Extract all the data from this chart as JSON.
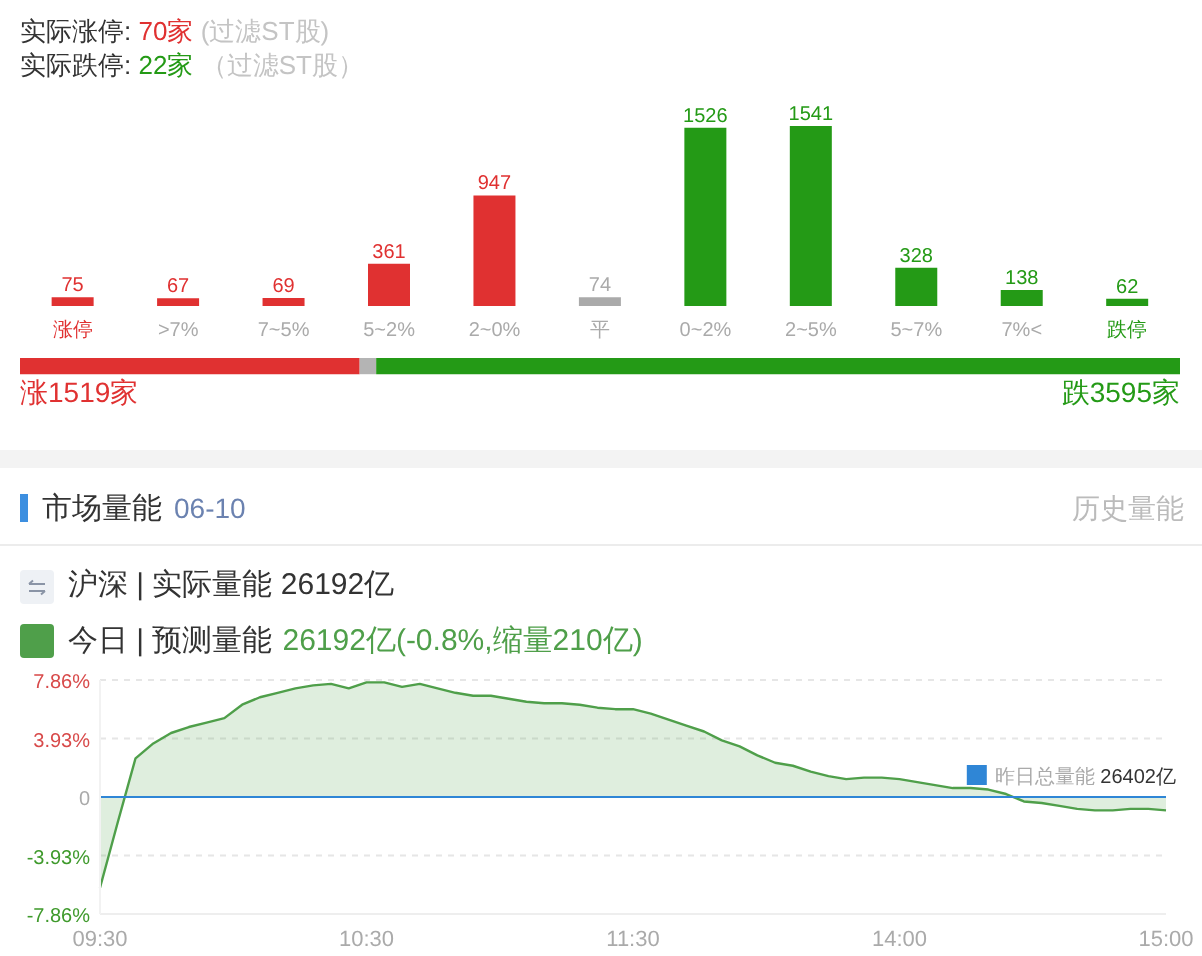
{
  "chart_data": [
    {
      "type": "bar",
      "title": "实际涨停: 70家 (过滤ST股)",
      "subtitle": "实际跌停: 22家 （过滤ST股）",
      "categories": [
        "涨停",
        ">7%",
        "7~5%",
        "5~2%",
        "2~0%",
        "平",
        "0~2%",
        "2~5%",
        "5~7%",
        "7%<",
        "跌停"
      ],
      "values": [
        75,
        67,
        69,
        361,
        947,
        74,
        1526,
        1541,
        328,
        138,
        62
      ],
      "colors": [
        "#e03131",
        "#e03131",
        "#e03131",
        "#e03131",
        "#e03131",
        "#aaaaaa",
        "#249a16",
        "#249a16",
        "#249a16",
        "#249a16",
        "#249a16"
      ],
      "data_labels": true,
      "tick_labels": "x"
    },
    {
      "type": "bar",
      "orientation": "horizontal",
      "stacked": true,
      "categories": [
        null
      ],
      "series": [
        {
          "color": "#e03131",
          "values": [
            1519
          ],
          "value_labels": [
            "涨1519家"
          ]
        },
        {
          "color": "#b4b4b4",
          "values": [
            74
          ],
          "value_labels": [
            null
          ]
        },
        {
          "color": "#249a16",
          "values": [
            3595
          ],
          "value_labels": [
            "跌3595家"
          ]
        }
      ],
      "tick_labels": false
    },
    {
      "type": "area",
      "title": "市场量能",
      "subtitle": "06-10",
      "annotations": [
        "历史量能",
        "沪深 | 实际量能 26192亿",
        "26192亿(-0.8%,缩量210亿)"
      ],
      "categories": [
        "09:30",
        null,
        null,
        null,
        null,
        null,
        null,
        null,
        null,
        null,
        null,
        null,
        null,
        null,
        null,
        "10:30",
        null,
        null,
        null,
        null,
        null,
        null,
        null,
        null,
        null,
        null,
        null,
        null,
        null,
        null,
        "11:30",
        null,
        null,
        null,
        null,
        null,
        null,
        null,
        null,
        null,
        null,
        null,
        null,
        null,
        null,
        "14:00",
        null,
        null,
        null,
        null,
        null,
        null,
        null,
        null,
        null,
        null,
        null,
        null,
        null,
        null,
        "15:00"
      ],
      "series": [
        {
          "name": "今日 | 预测量能",
          "color": "#4f9f4a",
          "values": [
            -6.1,
            -1.7,
            2.6,
            3.6,
            4.3,
            4.7,
            5.0,
            5.3,
            6.2,
            6.7,
            7.0,
            7.3,
            7.5,
            7.6,
            7.3,
            7.7,
            7.7,
            7.4,
            7.6,
            7.3,
            7.0,
            6.8,
            6.8,
            6.6,
            6.4,
            6.3,
            6.3,
            6.2,
            6.0,
            5.9,
            5.9,
            5.6,
            5.2,
            4.8,
            4.4,
            3.8,
            3.4,
            2.8,
            2.3,
            2.1,
            1.7,
            1.4,
            1.2,
            1.3,
            1.3,
            1.2,
            1.0,
            0.8,
            0.6,
            0.6,
            0.5,
            0.2,
            -0.3,
            -0.4,
            -0.6,
            -0.8,
            -0.9,
            -0.9,
            -0.8,
            -0.8,
            -0.9
          ]
        }
      ],
      "ylim": [
        -7.86,
        7.86
      ],
      "yticks": [
        {
          "value": -7.86,
          "label": "-7.86%"
        },
        {
          "value": -3.93,
          "label": "-3.93%"
        },
        0,
        {
          "value": 3.93,
          "label": "3.93%"
        },
        {
          "value": 7.86,
          "label": "7.86%"
        }
      ],
      "ref_lines": [
        {
          "axis": "y",
          "value": 0,
          "label": "昨日总量能 26402亿",
          "color": "#2f86d6"
        }
      ],
      "grid": "y",
      "legend": "top left",
      "marker": "none",
      "line_style": "solid"
    }
  ]
}
